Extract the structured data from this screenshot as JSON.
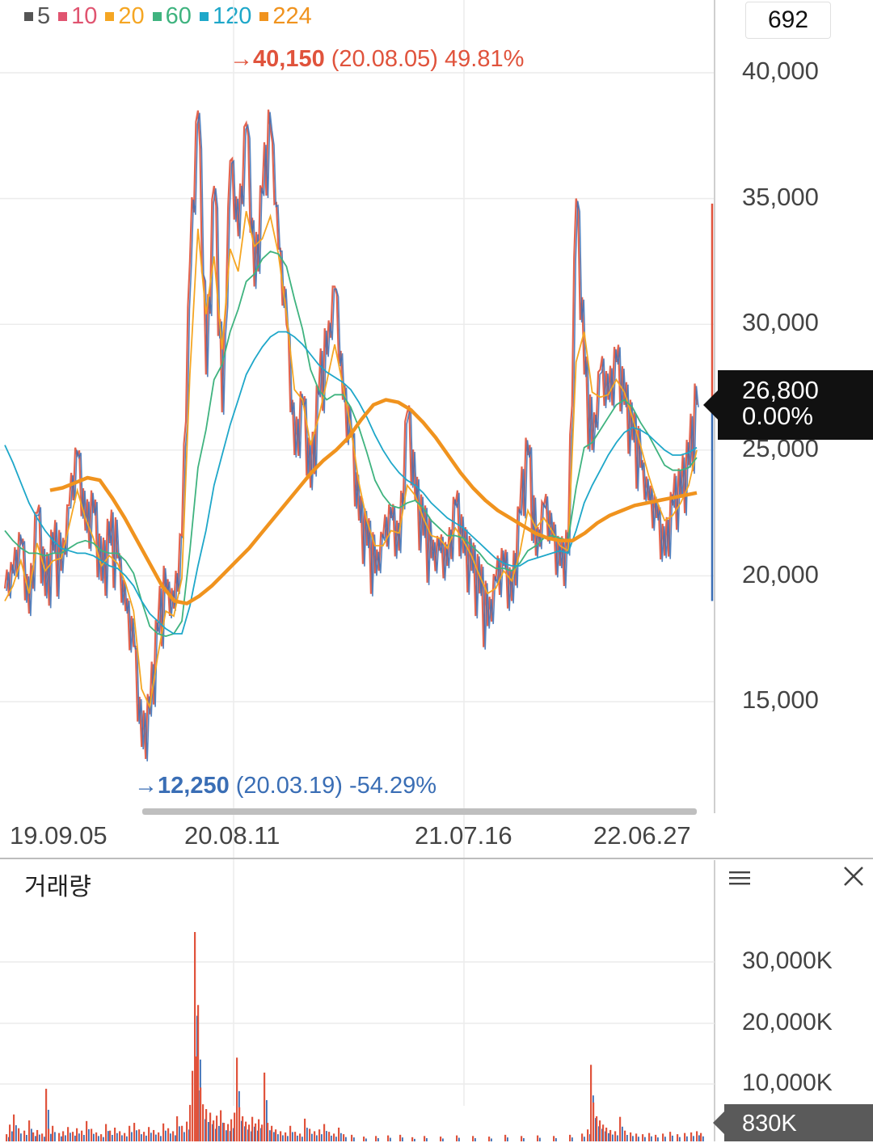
{
  "legend": [
    {
      "label": "5",
      "color": "#555555"
    },
    {
      "label": "10",
      "color": "#e05470"
    },
    {
      "label": "20",
      "color": "#f5a623"
    },
    {
      "label": "60",
      "color": "#3fb37f"
    },
    {
      "label": "120",
      "color": "#1ea7c9"
    },
    {
      "label": "224",
      "color": "#f0931e"
    }
  ],
  "count_box": "692",
  "high_annotation": {
    "arrow": "→",
    "value": "40,150",
    "detail": "(20.08.05) 49.81%",
    "color": "#e0533c"
  },
  "low_annotation": {
    "arrow": "→",
    "value": "12,250",
    "detail": "(20.03.19) -54.29%",
    "color": "#3a6eb5"
  },
  "price_tag": {
    "price": "26,800",
    "change": "0.00%"
  },
  "volume": {
    "title": "거래량",
    "tag": "830K",
    "axis_labels": [
      "30,000K",
      "20,000K",
      "10,000K"
    ]
  },
  "chart_data": {
    "type": "line",
    "y_axis_labels": [
      "40,000",
      "35,000",
      "30,000",
      "25,000",
      "20,000",
      "15,000"
    ],
    "x_axis_labels": [
      "19.09.05",
      "20.08.11",
      "21.07.16",
      "22.06.27"
    ],
    "ylim": [
      10500,
      42500
    ],
    "price_points": [
      [
        0,
        19500
      ],
      [
        1,
        20100
      ],
      [
        2,
        21300
      ],
      [
        3,
        18500
      ],
      [
        4,
        22500
      ],
      [
        5,
        19200
      ],
      [
        6,
        21000
      ],
      [
        7,
        20200
      ],
      [
        8,
        22800
      ],
      [
        9,
        24800
      ],
      [
        10,
        21800
      ],
      [
        11,
        22500
      ],
      [
        12,
        19800
      ],
      [
        13,
        21300
      ],
      [
        14,
        20700
      ],
      [
        15,
        18600
      ],
      [
        16,
        17200
      ],
      [
        17,
        13200
      ],
      [
        18,
        14500
      ],
      [
        19,
        17800
      ],
      [
        20,
        19400
      ],
      [
        21,
        18700
      ],
      [
        22,
        21600
      ],
      [
        23,
        32500
      ],
      [
        24,
        38500
      ],
      [
        25,
        28000
      ],
      [
        26,
        35500
      ],
      [
        27,
        26500
      ],
      [
        28,
        36500
      ],
      [
        29,
        33500
      ],
      [
        30,
        38000
      ],
      [
        31,
        31500
      ],
      [
        32,
        35200
      ],
      [
        33,
        37800
      ],
      [
        34,
        33000
      ],
      [
        35,
        30000
      ],
      [
        36,
        24800
      ],
      [
        37,
        26800
      ],
      [
        38,
        23500
      ],
      [
        39,
        27200
      ],
      [
        40,
        28800
      ],
      [
        41,
        31500
      ],
      [
        42,
        27000
      ],
      [
        43,
        25500
      ],
      [
        44,
        22200
      ],
      [
        45,
        21200
      ],
      [
        46,
        20100
      ],
      [
        47,
        21500
      ],
      [
        48,
        22300
      ],
      [
        49,
        21000
      ],
      [
        50,
        26500
      ],
      [
        51,
        23000
      ],
      [
        52,
        21600
      ],
      [
        53,
        20700
      ],
      [
        54,
        21000
      ],
      [
        55,
        20400
      ],
      [
        56,
        22800
      ],
      [
        57,
        20900
      ],
      [
        58,
        20200
      ],
      [
        59,
        19300
      ],
      [
        60,
        18000
      ],
      [
        61,
        19800
      ],
      [
        62,
        20400
      ],
      [
        63,
        19000
      ],
      [
        64,
        22500
      ],
      [
        65,
        24800
      ],
      [
        66,
        20800
      ],
      [
        67,
        22800
      ],
      [
        68,
        21500
      ],
      [
        69,
        20400
      ],
      [
        70,
        20900
      ],
      [
        71,
        35000
      ],
      [
        72,
        28000
      ],
      [
        73,
        25000
      ],
      [
        74,
        28200
      ],
      [
        75,
        27000
      ],
      [
        76,
        28500
      ],
      [
        77,
        26800
      ],
      [
        78,
        25400
      ],
      [
        79,
        24300
      ],
      [
        80,
        23000
      ],
      [
        81,
        22300
      ],
      [
        82,
        20800
      ],
      [
        83,
        22800
      ],
      [
        84,
        23200
      ],
      [
        85,
        24400
      ],
      [
        86,
        26800
      ]
    ],
    "series": [
      {
        "name": "20",
        "values": [
          19000,
          19600,
          20600,
          19300,
          21300,
          20200,
          20600,
          20700,
          22000,
          23400,
          22300,
          21500,
          20400,
          20800,
          20500,
          19700,
          18600,
          15500,
          14800,
          16800,
          18600,
          18400,
          19900,
          28000,
          33800,
          30400,
          32700,
          29000,
          33000,
          32100,
          34500,
          33100,
          33400,
          34300,
          32800,
          30400,
          27400,
          27000,
          25200,
          26300,
          27700,
          29200,
          27600,
          25900,
          23700,
          22200,
          21200,
          21200,
          21800,
          21700,
          23600,
          23200,
          22300,
          21600,
          21500,
          21100,
          21900,
          21400,
          20800,
          20000,
          19300,
          19500,
          20200,
          19800,
          20900,
          22600,
          21900,
          22300,
          21800,
          21200,
          21000,
          28500,
          29700,
          27300,
          27100,
          27200,
          27800,
          27300,
          26300,
          25200,
          24000,
          23000,
          22200,
          22400,
          22900,
          23600,
          25000
        ]
      },
      {
        "name": "60",
        "values": [
          21800,
          21400,
          21100,
          20900,
          20900,
          20800,
          20900,
          20900,
          21100,
          21300,
          21400,
          21300,
          21000,
          20900,
          20900,
          20600,
          20100,
          19000,
          18000,
          17700,
          17600,
          17700,
          18200,
          21000,
          24300,
          25800,
          27800,
          28400,
          29700,
          30600,
          31700,
          32000,
          32600,
          32900,
          32800,
          32300,
          31000,
          29800,
          28200,
          27400,
          27000,
          27200,
          27200,
          26700,
          25900,
          24900,
          23800,
          23200,
          22800,
          22700,
          22900,
          23000,
          22700,
          22200,
          21900,
          21600,
          21600,
          21500,
          21200,
          20900,
          20500,
          20300,
          20300,
          20200,
          20500,
          21000,
          21200,
          21500,
          21600,
          21500,
          21400,
          23500,
          25100,
          25300,
          25800,
          26300,
          26800,
          27000,
          26700,
          26100,
          25600,
          25000,
          24400,
          24200,
          24200,
          24300,
          24700
        ]
      },
      {
        "name": "120",
        "values": [
          25200,
          24500,
          23700,
          22900,
          22300,
          21800,
          21400,
          21100,
          21000,
          20900,
          20900,
          20800,
          20600,
          20400,
          20300,
          20000,
          19600,
          19000,
          18500,
          18200,
          17900,
          17700,
          17700,
          18800,
          20400,
          21800,
          23600,
          24800,
          26000,
          27000,
          28000,
          28600,
          29100,
          29500,
          29700,
          29700,
          29500,
          29200,
          28800,
          28400,
          28100,
          27900,
          27700,
          27400,
          26900,
          26300,
          25600,
          25000,
          24500,
          24100,
          23800,
          23600,
          23300,
          22900,
          22600,
          22300,
          22100,
          21900,
          21600,
          21300,
          21000,
          20700,
          20500,
          20400,
          20400,
          20600,
          20700,
          20800,
          20900,
          21000,
          20900,
          21800,
          22900,
          23600,
          24200,
          24800,
          25300,
          25700,
          25900,
          25800,
          25600,
          25300,
          25000,
          24800,
          24800,
          24900,
          25100
        ]
      }
    ],
    "ma224": [
      23400,
      23500,
      23700,
      23900,
      23800,
      23100,
      22300,
      21400,
      20500,
      19600,
      19000,
      18900,
      19200,
      19600,
      20100,
      20600,
      21100,
      21700,
      22300,
      22900,
      23500,
      24100,
      24600,
      25000,
      25500,
      26200,
      26800,
      27000,
      26900,
      26600,
      26100,
      25500,
      24800,
      24100,
      23500,
      23000,
      22600,
      22300,
      22000,
      21700,
      21500,
      21400,
      21400,
      21700,
      22100,
      22400,
      22600,
      22800,
      22900,
      23000,
      23100,
      23200,
      23300
    ],
    "ma224_start": 7,
    "volume_bars": [
      [
        3,
        1200
      ],
      [
        7,
        2800
      ],
      [
        12,
        4500
      ],
      [
        18,
        2200
      ],
      [
        25,
        1800
      ],
      [
        31,
        3500
      ],
      [
        36,
        1500
      ],
      [
        41,
        1900
      ],
      [
        47,
        1300
      ],
      [
        52,
        8800
      ],
      [
        55,
        2100
      ],
      [
        60,
        2600
      ],
      [
        68,
        1400
      ],
      [
        73,
        1700
      ],
      [
        79,
        2400
      ],
      [
        85,
        1600
      ],
      [
        90,
        2200
      ],
      [
        96,
        1800
      ],
      [
        102,
        3400
      ],
      [
        108,
        2100
      ],
      [
        114,
        1500
      ],
      [
        120,
        1200
      ],
      [
        126,
        2900
      ],
      [
        131,
        1800
      ],
      [
        137,
        2300
      ],
      [
        143,
        1700
      ],
      [
        149,
        1400
      ],
      [
        155,
        2600
      ],
      [
        161,
        3100
      ],
      [
        167,
        2000
      ],
      [
        173,
        1600
      ],
      [
        179,
        2400
      ],
      [
        185,
        1900
      ],
      [
        191,
        1500
      ],
      [
        197,
        3000
      ],
      [
        203,
        2200
      ],
      [
        209,
        1700
      ],
      [
        214,
        4200
      ],
      [
        220,
        2600
      ],
      [
        226,
        3300
      ],
      [
        230,
        6100
      ],
      [
        233,
        11800
      ],
      [
        236,
        35000
      ],
      [
        238,
        14200
      ],
      [
        240,
        22800
      ],
      [
        243,
        9000
      ],
      [
        246,
        6200
      ],
      [
        250,
        5400
      ],
      [
        255,
        4800
      ],
      [
        259,
        3500
      ],
      [
        263,
        4300
      ],
      [
        268,
        5200
      ],
      [
        272,
        3100
      ],
      [
        277,
        2900
      ],
      [
        281,
        3700
      ],
      [
        285,
        4800
      ],
      [
        288,
        14000
      ],
      [
        291,
        5700
      ],
      [
        295,
        4200
      ],
      [
        299,
        3300
      ],
      [
        303,
        2800
      ],
      [
        307,
        4100
      ],
      [
        311,
        3000
      ],
      [
        315,
        3700
      ],
      [
        319,
        2800
      ],
      [
        322,
        11500
      ],
      [
        326,
        3100
      ],
      [
        331,
        2600
      ],
      [
        336,
        2000
      ],
      [
        342,
        1700
      ],
      [
        348,
        1500
      ],
      [
        354,
        2600
      ],
      [
        360,
        1600
      ],
      [
        366,
        1300
      ],
      [
        372,
        3800
      ],
      [
        378,
        2100
      ],
      [
        384,
        1700
      ],
      [
        390,
        2000
      ],
      [
        396,
        2900
      ],
      [
        402,
        1600
      ],
      [
        408,
        1300
      ],
      [
        414,
        2300
      ],
      [
        420,
        1200
      ],
      [
        430,
        1100
      ],
      [
        445,
        800
      ],
      [
        460,
        900
      ],
      [
        475,
        1000
      ],
      [
        490,
        1100
      ],
      [
        505,
        700
      ],
      [
        520,
        900
      ],
      [
        540,
        800
      ],
      [
        560,
        1000
      ],
      [
        580,
        900
      ],
      [
        600,
        800
      ],
      [
        620,
        1100
      ],
      [
        640,
        900
      ],
      [
        660,
        1000
      ],
      [
        680,
        900
      ],
      [
        700,
        1100
      ],
      [
        715,
        1300
      ],
      [
        722,
        2000
      ],
      [
        726,
        12800
      ],
      [
        729,
        6500
      ],
      [
        733,
        4200
      ],
      [
        737,
        3500
      ],
      [
        741,
        2800
      ],
      [
        745,
        2300
      ],
      [
        750,
        1900
      ],
      [
        756,
        1700
      ],
      [
        762,
        4100
      ],
      [
        768,
        1800
      ],
      [
        775,
        1500
      ],
      [
        782,
        1300
      ],
      [
        790,
        1200
      ],
      [
        798,
        1400
      ],
      [
        806,
        1100
      ],
      [
        815,
        1300
      ],
      [
        824,
        1600
      ],
      [
        833,
        1200
      ],
      [
        842,
        1400
      ],
      [
        850,
        1500
      ],
      [
        857,
        1700
      ],
      [
        862,
        1400
      ]
    ]
  }
}
